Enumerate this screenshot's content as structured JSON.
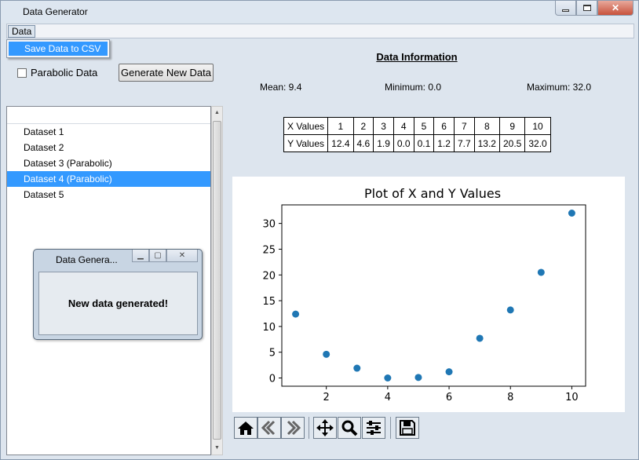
{
  "window": {
    "title": "Data Generator"
  },
  "menu": {
    "data_label": "Data",
    "items": [
      "Save Data to CSV"
    ]
  },
  "controls": {
    "parabolic_checkbox_label": "Parabolic Data",
    "parabolic_checked": false,
    "generate_button_label": "Generate New Data"
  },
  "datasets": {
    "items": [
      "Dataset 1",
      "Dataset 2",
      "Dataset 3 (Parabolic)",
      "Dataset 4 (Parabolic)",
      "Dataset 5"
    ],
    "selected_index": 3
  },
  "dialog": {
    "title": "Data Genera...",
    "message": "New data generated!"
  },
  "info": {
    "heading": "Data Information",
    "mean": "Mean: 9.4",
    "minimum": "Minimum: 0.0",
    "maximum": "Maximum: 32.0"
  },
  "table": {
    "x_header": "X Values",
    "y_header": "Y Values",
    "x_values": [
      "1",
      "2",
      "3",
      "4",
      "5",
      "6",
      "7",
      "8",
      "9",
      "10"
    ],
    "y_values": [
      "12.4",
      "4.6",
      "1.9",
      "0.0",
      "0.1",
      "1.2",
      "7.7",
      "13.2",
      "20.5",
      "32.0"
    ]
  },
  "chart_data": {
    "type": "scatter",
    "title": "Plot of X and Y Values",
    "xlabel": "",
    "ylabel": "",
    "x": [
      1,
      2,
      3,
      4,
      5,
      6,
      7,
      8,
      9,
      10
    ],
    "y": [
      12.4,
      4.6,
      1.9,
      0.0,
      0.1,
      1.2,
      7.7,
      13.2,
      20.5,
      32.0
    ],
    "xlim": [
      0.55,
      10.45
    ],
    "ylim": [
      -1.6,
      33.6
    ],
    "xticks": [
      2,
      4,
      6,
      8,
      10
    ],
    "yticks": [
      0,
      5,
      10,
      15,
      20,
      25,
      30
    ],
    "marker_color": "#1f77b4",
    "grid": false
  },
  "toolbar": {
    "icons": [
      "home-icon",
      "back-icon",
      "forward-icon",
      "pan-icon",
      "zoom-icon",
      "configure-icon",
      "save-icon"
    ]
  },
  "colors": {
    "selection": "#3399ff",
    "background": "#dde5ee"
  }
}
